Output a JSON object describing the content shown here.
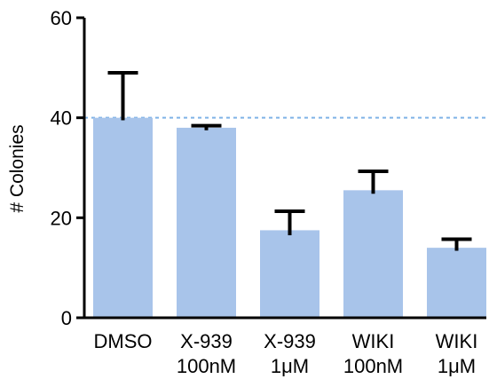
{
  "chart_data": {
    "type": "bar",
    "title": "",
    "xlabel": "",
    "ylabel": "# Colonies",
    "ylim": [
      0,
      60
    ],
    "yticks": [
      0,
      20,
      40,
      60
    ],
    "grid": false,
    "legend": "none",
    "reference_line": {
      "y": 40,
      "style": "dashed",
      "color": "#7fb3e6"
    },
    "categories": [
      [
        "DMSO"
      ],
      [
        "X-939",
        "100nM"
      ],
      [
        "X-939",
        "1μM"
      ],
      [
        "WIKI",
        "100nM"
      ],
      [
        "WIKI",
        "1μM"
      ]
    ],
    "values": [
      40,
      38,
      17.5,
      25.5,
      14
    ],
    "error_upper": [
      49,
      38.4,
      21.3,
      29.3,
      15.7
    ],
    "error_lower": [
      39.5,
      37.5,
      16.5,
      24.8,
      13.4
    ],
    "colors": {
      "bar": "#a8c4ea",
      "error": "#000000",
      "axis": "#000000"
    }
  }
}
